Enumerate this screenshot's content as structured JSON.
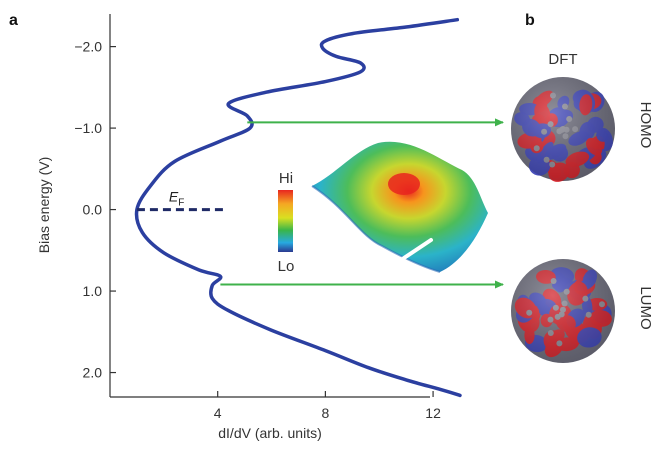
{
  "panel_labels": {
    "a": "a",
    "b": "b"
  },
  "chart_data": {
    "type": "line",
    "xlabel": "dI/dV (arb. units)",
    "ylabel": "Bias energy (V)",
    "x_ticks": [
      "4",
      "8",
      "12"
    ],
    "x_tick_values": [
      4,
      8,
      12
    ],
    "y_ticks": [
      "−2.0",
      "−1.0",
      "0.0",
      "1.0",
      "2.0"
    ],
    "y_tick_values": [
      -2.0,
      -1.0,
      0.0,
      1.0,
      2.0
    ],
    "xlim": [
      0,
      13
    ],
    "ylim": [
      -2.4,
      2.3
    ],
    "y_inverted": true,
    "series": [
      {
        "color": "#2b3fa0",
        "points": [
          [
            12.9,
            -2.33
          ],
          [
            11.0,
            -2.24
          ],
          [
            9.0,
            -2.16
          ],
          [
            8.0,
            -2.07
          ],
          [
            7.9,
            -1.98
          ],
          [
            8.4,
            -1.88
          ],
          [
            9.3,
            -1.8
          ],
          [
            9.3,
            -1.69
          ],
          [
            8.0,
            -1.57
          ],
          [
            5.8,
            -1.44
          ],
          [
            4.4,
            -1.3
          ],
          [
            5.1,
            -1.15
          ],
          [
            5.2,
            -1.0
          ],
          [
            4.1,
            -0.84
          ],
          [
            2.4,
            -0.59
          ],
          [
            1.5,
            -0.29
          ],
          [
            1.0,
            0.0
          ],
          [
            1.2,
            0.28
          ],
          [
            2.0,
            0.53
          ],
          [
            3.3,
            0.74
          ],
          [
            4.1,
            0.82
          ],
          [
            3.8,
            0.93
          ],
          [
            3.8,
            1.09
          ],
          [
            4.4,
            1.24
          ],
          [
            6.0,
            1.48
          ],
          [
            8.0,
            1.73
          ],
          [
            9.6,
            1.94
          ],
          [
            11.0,
            2.09
          ],
          [
            12.3,
            2.21
          ],
          [
            13.0,
            2.28
          ]
        ]
      }
    ],
    "fermi_level": {
      "label_main": "E",
      "label_sub": "F",
      "y": 0.0,
      "x_from": 1.0,
      "x_to": 4.2
    },
    "arrows": [
      {
        "from_x": 5.1,
        "y": -1.07,
        "target": "homo"
      },
      {
        "from_x": 4.1,
        "y": 0.92,
        "target": "lumo"
      }
    ],
    "inset_colorbar": {
      "high_label": "Hi",
      "low_label": "Lo"
    },
    "orbitals": {
      "method_label": "DFT",
      "homo_label": "HOMO",
      "lumo_label": "LUMO"
    }
  }
}
